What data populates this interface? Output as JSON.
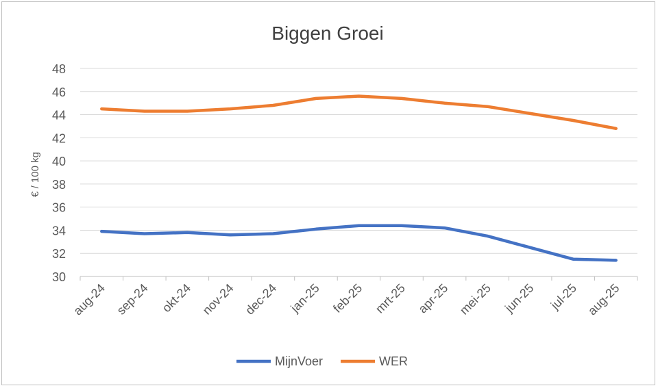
{
  "chart_data": {
    "type": "line",
    "title": "Biggen Groei",
    "xlabel": "",
    "ylabel": "€ / 100 kg",
    "categories": [
      "aug-24",
      "sep-24",
      "okt-24",
      "nov-24",
      "dec-24",
      "jan-25",
      "feb-25",
      "mrt-25",
      "apr-25",
      "mei-25",
      "jun-25",
      "jul-25",
      "aug-25"
    ],
    "ylim": [
      30,
      48
    ],
    "yticks": [
      30,
      32,
      34,
      36,
      38,
      40,
      42,
      44,
      46,
      48
    ],
    "grid": true,
    "legend_position": "bottom",
    "series": [
      {
        "name": "MijnVoer",
        "color": "#4472C4",
        "values": [
          33.9,
          33.7,
          33.8,
          33.6,
          33.7,
          34.1,
          34.4,
          34.4,
          34.2,
          33.5,
          32.5,
          31.5,
          31.4
        ]
      },
      {
        "name": "WER",
        "color": "#ED7D31",
        "values": [
          44.5,
          44.3,
          44.3,
          44.5,
          44.8,
          45.4,
          45.6,
          45.4,
          45.0,
          44.7,
          44.1,
          43.5,
          42.8
        ]
      }
    ]
  }
}
